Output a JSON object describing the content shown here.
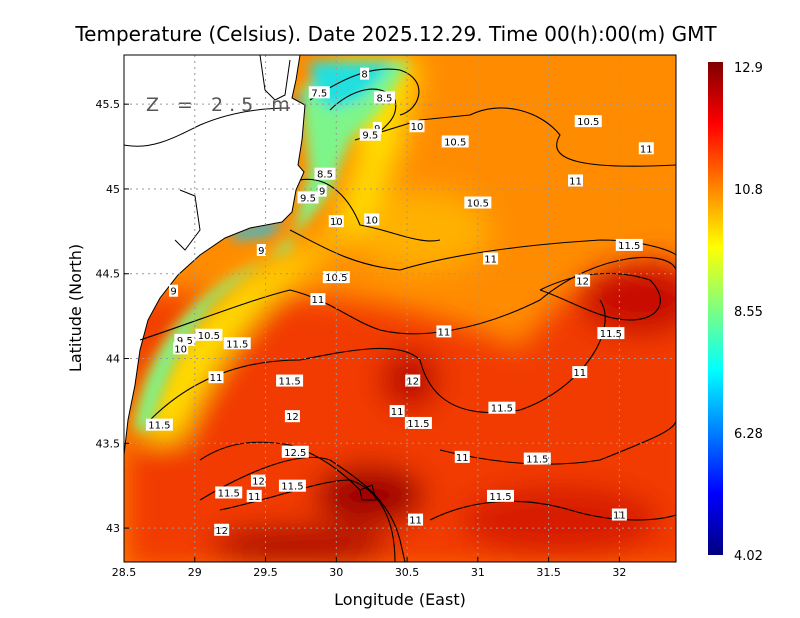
{
  "title": "Temperature (Celsius). Date 2025.12.29. Time 00(h):00(m) GMT",
  "depth_label": "Z = 2.5 m",
  "chart_data": {
    "type": "heatmap",
    "xlabel": "Longitude (East)",
    "ylabel": "Latitude (North)",
    "xlim": [
      28.5,
      32.4
    ],
    "ylim": [
      42.8,
      45.79
    ],
    "xticks": [
      "28.5",
      "29",
      "29.5",
      "30",
      "30.5",
      "31",
      "31.5",
      "32"
    ],
    "yticks": [
      "43",
      "43.5",
      "44",
      "44.5",
      "45",
      "45.5"
    ],
    "grid": true,
    "colorbar": {
      "min": 4.02,
      "max": 12.9,
      "labels": [
        "12.9",
        "10.8",
        "8.55",
        "6.28",
        "4.02"
      ],
      "colors": [
        "#00007f",
        "#0000ff",
        "#007fff",
        "#00ffff",
        "#7fff7f",
        "#ffff00",
        "#ff7f00",
        "#ff0000",
        "#7f0000"
      ]
    },
    "contour_labels": [
      {
        "v": "8",
        "lon": 30.2,
        "lat": 45.68
      },
      {
        "v": "7.5",
        "lon": 29.88,
        "lat": 45.57
      },
      {
        "v": "8.5",
        "lon": 30.34,
        "lat": 45.54
      },
      {
        "v": "9",
        "lon": 30.29,
        "lat": 45.36
      },
      {
        "v": "9.5",
        "lon": 30.24,
        "lat": 45.32
      },
      {
        "v": "10",
        "lon": 30.57,
        "lat": 45.37
      },
      {
        "v": "10.5",
        "lon": 30.84,
        "lat": 45.28
      },
      {
        "v": "10.5",
        "lon": 31.78,
        "lat": 45.4
      },
      {
        "v": "11",
        "lon": 32.19,
        "lat": 45.24
      },
      {
        "v": "8.5",
        "lon": 29.92,
        "lat": 45.09
      },
      {
        "v": "9",
        "lon": 29.9,
        "lat": 44.99
      },
      {
        "v": "9.5",
        "lon": 29.8,
        "lat": 44.95
      },
      {
        "v": "10",
        "lon": 30.0,
        "lat": 44.81
      },
      {
        "v": "10",
        "lon": 30.25,
        "lat": 44.82
      },
      {
        "v": "11",
        "lon": 31.69,
        "lat": 45.05
      },
      {
        "v": "10.5",
        "lon": 31.0,
        "lat": 44.92
      },
      {
        "v": "9",
        "lon": 29.47,
        "lat": 44.64
      },
      {
        "v": "11.5",
        "lon": 32.07,
        "lat": 44.67
      },
      {
        "v": "11",
        "lon": 31.09,
        "lat": 44.59
      },
      {
        "v": "12",
        "lon": 31.74,
        "lat": 44.46
      },
      {
        "v": "10.5",
        "lon": 30.0,
        "lat": 44.48
      },
      {
        "v": "9",
        "lon": 28.85,
        "lat": 44.4
      },
      {
        "v": "11",
        "lon": 29.87,
        "lat": 44.35
      },
      {
        "v": "11",
        "lon": 30.76,
        "lat": 44.16
      },
      {
        "v": "11.5",
        "lon": 31.94,
        "lat": 44.15
      },
      {
        "v": "9.5",
        "lon": 28.93,
        "lat": 44.11
      },
      {
        "v": "10",
        "lon": 28.9,
        "lat": 44.06
      },
      {
        "v": "10.5",
        "lon": 29.1,
        "lat": 44.14
      },
      {
        "v": "11.5",
        "lon": 29.3,
        "lat": 44.09
      },
      {
        "v": "11",
        "lon": 29.15,
        "lat": 43.89
      },
      {
        "v": "11.5",
        "lon": 29.67,
        "lat": 43.87
      },
      {
        "v": "12",
        "lon": 30.54,
        "lat": 43.87
      },
      {
        "v": "11",
        "lon": 31.72,
        "lat": 43.92
      },
      {
        "v": "11",
        "lon": 30.43,
        "lat": 43.69
      },
      {
        "v": "11.5",
        "lon": 30.58,
        "lat": 43.62
      },
      {
        "v": "12",
        "lon": 29.69,
        "lat": 43.66
      },
      {
        "v": "11.5",
        "lon": 31.17,
        "lat": 43.71
      },
      {
        "v": "11.5",
        "lon": 28.75,
        "lat": 43.61
      },
      {
        "v": "12.5",
        "lon": 29.71,
        "lat": 43.45
      },
      {
        "v": "11",
        "lon": 30.89,
        "lat": 43.42
      },
      {
        "v": "11.5",
        "lon": 31.42,
        "lat": 43.41
      },
      {
        "v": "12",
        "lon": 29.45,
        "lat": 43.28
      },
      {
        "v": "11.5",
        "lon": 29.69,
        "lat": 43.25
      },
      {
        "v": "11.5",
        "lon": 29.24,
        "lat": 43.21
      },
      {
        "v": "11",
        "lon": 29.42,
        "lat": 43.19
      },
      {
        "v": "11.5",
        "lon": 31.16,
        "lat": 43.19
      },
      {
        "v": "11",
        "lon": 30.56,
        "lat": 43.05
      },
      {
        "v": "11",
        "lon": 32.0,
        "lat": 43.08
      },
      {
        "v": "12",
        "lon": 29.19,
        "lat": 42.99
      }
    ]
  }
}
